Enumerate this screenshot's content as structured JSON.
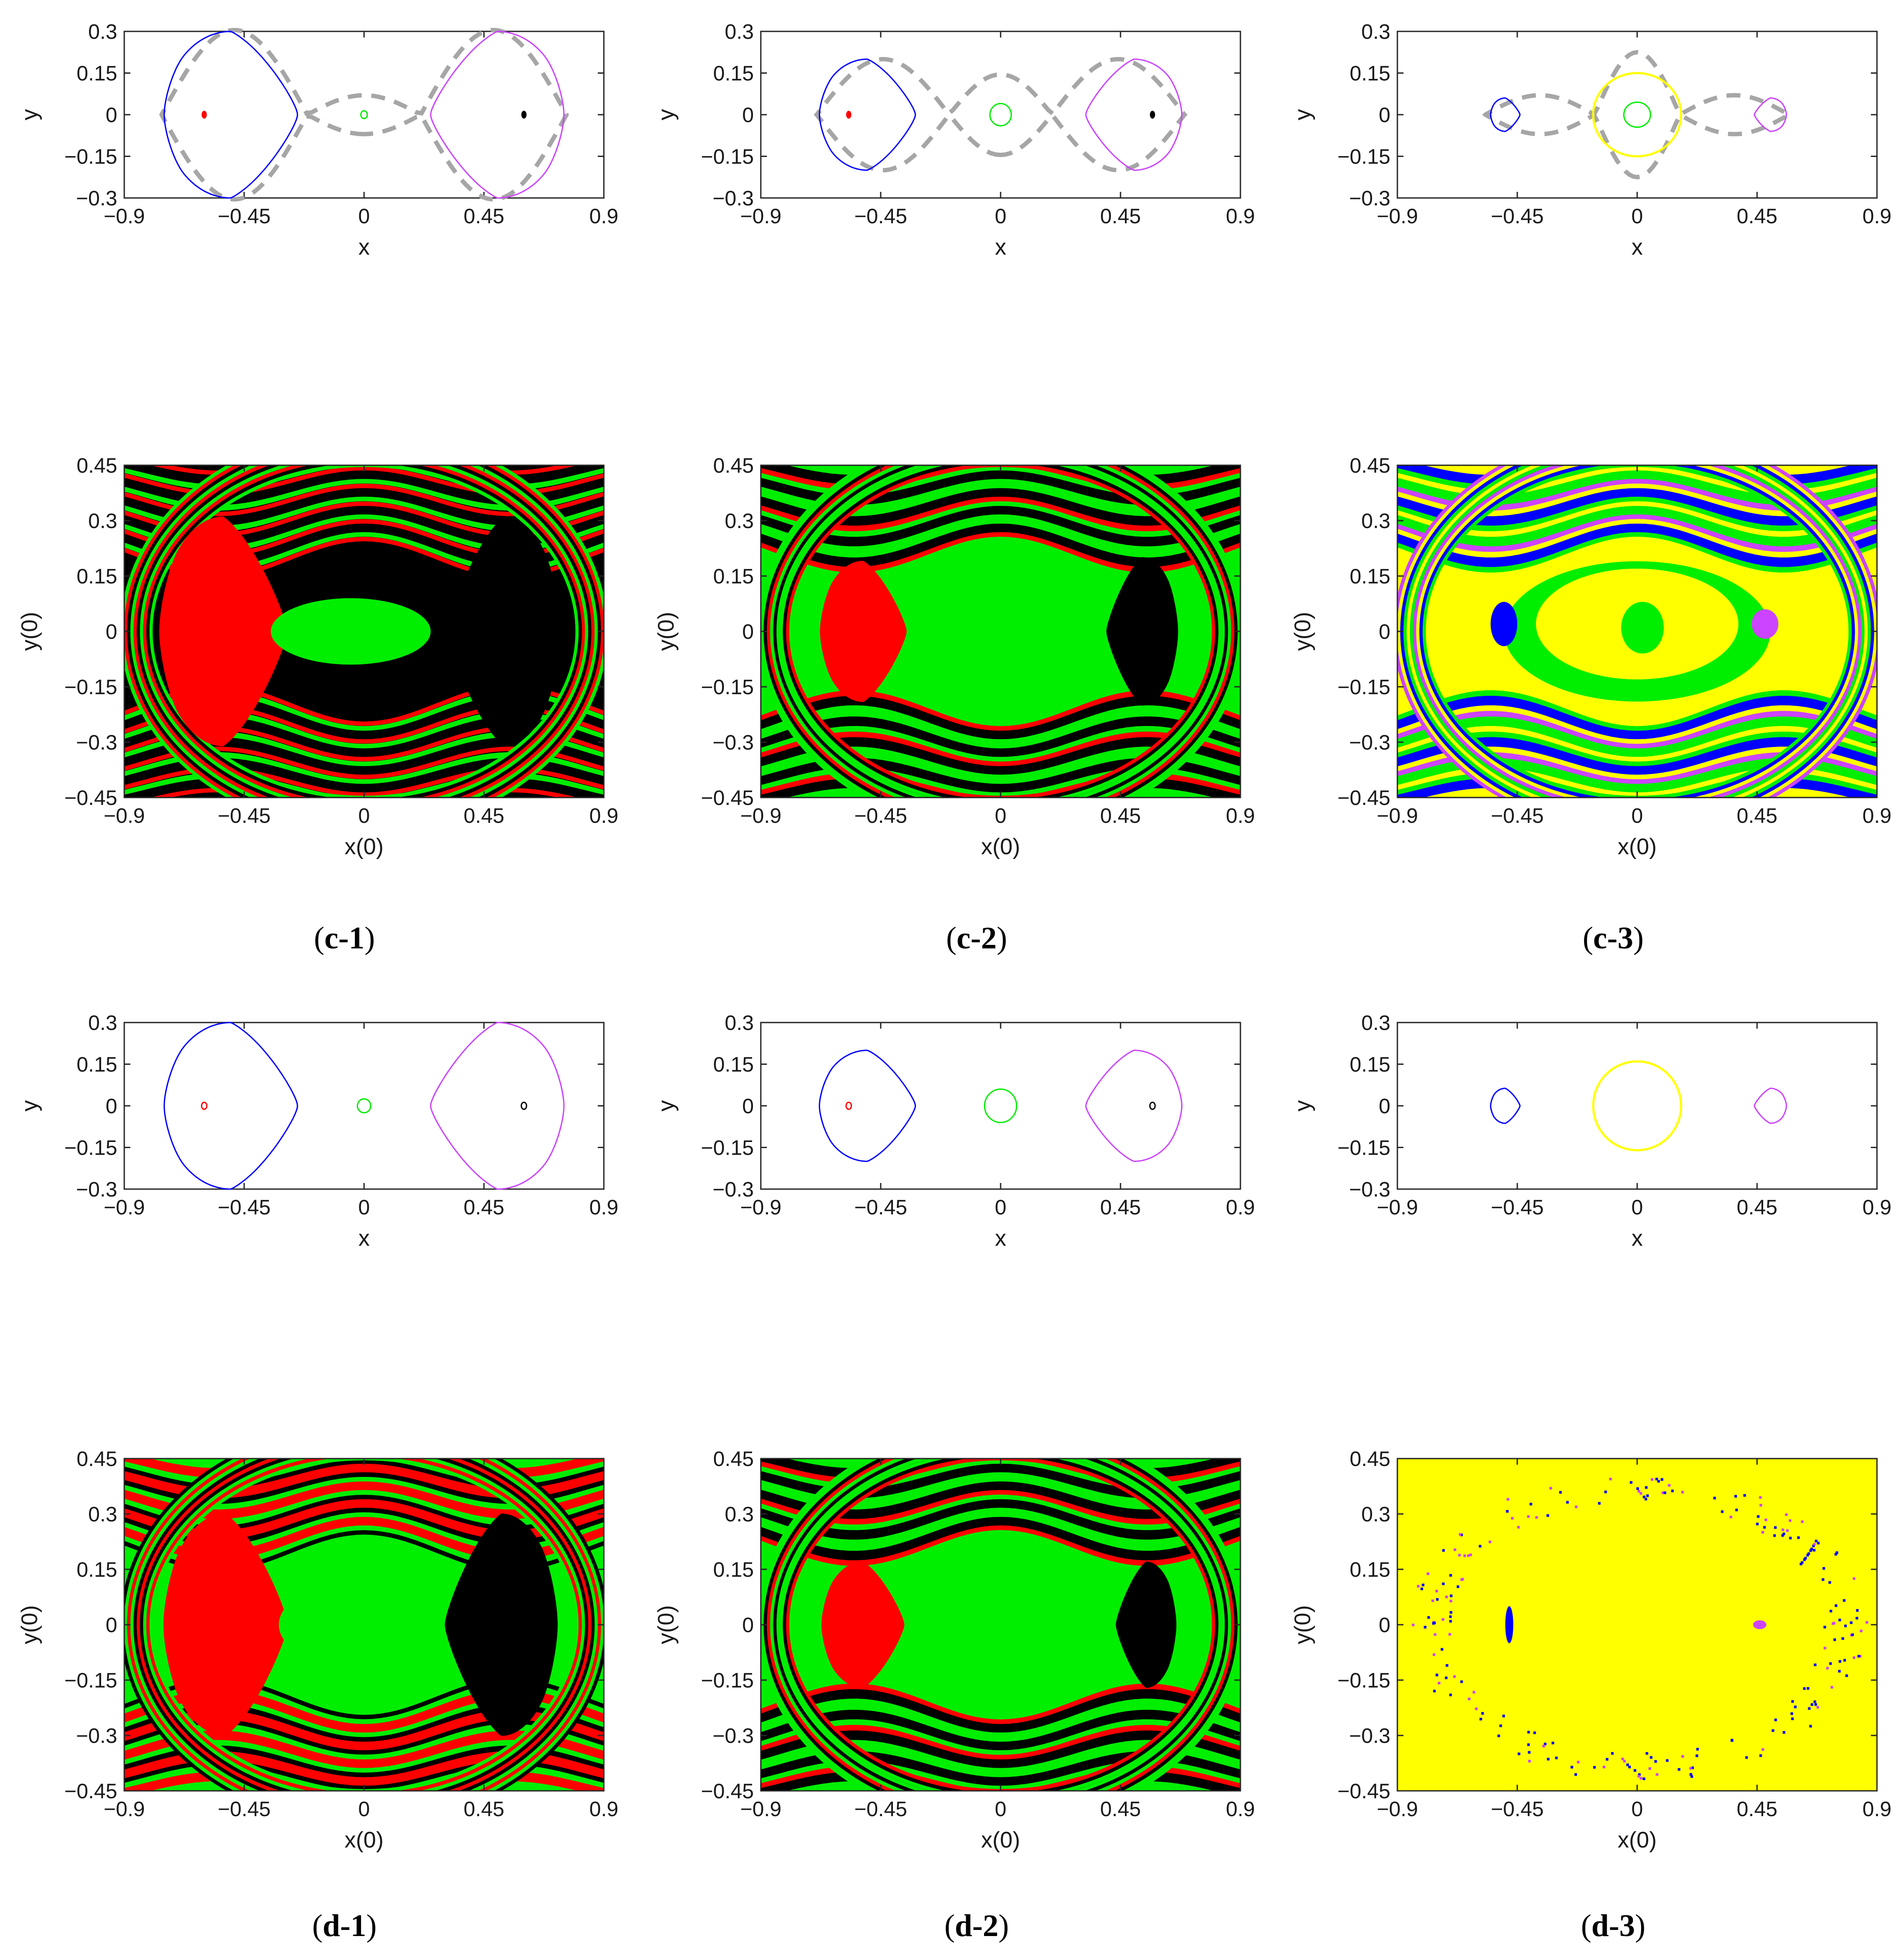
{
  "colors": {
    "blue": "#0000ff",
    "magenta": "#cc44ff",
    "green": "#00ee00",
    "red": "#ff0000",
    "black": "#000000",
    "yellow": "#ffff00",
    "gray_dashed": "#a6a6a6",
    "axis": "#262626"
  },
  "captions": [
    {
      "open": "(",
      "label": "c-1",
      "close": ")"
    },
    {
      "open": "(",
      "label": "c-2",
      "close": ")"
    },
    {
      "open": "(",
      "label": "c-3",
      "close": ")"
    },
    {
      "open": "(",
      "label": "d-1",
      "close": ")"
    },
    {
      "open": "(",
      "label": "d-2",
      "close": ")"
    },
    {
      "open": "(",
      "label": "d-3",
      "close": ")"
    }
  ],
  "chart_data": [
    {
      "id": "c1-phase",
      "type": "line",
      "xlabel": "x",
      "ylabel": "y",
      "xlim": [
        -0.9,
        0.9
      ],
      "ylim": [
        -0.3,
        0.3
      ],
      "xticks": [
        "−0.9",
        "−0.45",
        "0",
        "0.45",
        "0.9"
      ],
      "yticks": [
        "−0.3",
        "−0.15",
        "0",
        "0.15",
        "0.3"
      ],
      "curves": [
        {
          "kind": "lobe",
          "color": "blue",
          "cx": -0.6,
          "xmin": -0.75,
          "xmax": -0.25,
          "ymax": 0.3,
          "side": "left"
        },
        {
          "kind": "lobe",
          "color": "magenta",
          "cx": 0.6,
          "xmin": 0.25,
          "xmax": 0.75,
          "ymax": 0.3,
          "side": "right"
        },
        {
          "kind": "ellipse",
          "color": "green",
          "cx": 0.0,
          "cy": 0,
          "rx": 0.012,
          "ry": 0.014
        },
        {
          "kind": "dot",
          "color": "red",
          "cx": -0.6,
          "cy": 0
        },
        {
          "kind": "dot",
          "color": "black",
          "cx": 0.6,
          "cy": 0
        },
        {
          "kind": "separatrix",
          "color": "gray_dashed",
          "xouter": 0.76,
          "saddle": 0.6,
          "ylobe": 0.305,
          "ymid": 0.07
        }
      ]
    },
    {
      "id": "c2-phase",
      "type": "line",
      "xlabel": "x",
      "ylabel": "y",
      "xlim": [
        -0.9,
        0.9
      ],
      "ylim": [
        -0.3,
        0.3
      ],
      "xticks": [
        "−0.9",
        "−0.45",
        "0",
        "0.45",
        "0.9"
      ],
      "yticks": [
        "−0.3",
        "−0.15",
        "0",
        "0.15",
        "0.3"
      ],
      "curves": [
        {
          "kind": "lobe",
          "color": "blue",
          "cx": -0.55,
          "xmin": -0.68,
          "xmax": -0.32,
          "ymax": 0.2,
          "side": "left"
        },
        {
          "kind": "lobe",
          "color": "magenta",
          "cx": 0.55,
          "xmin": 0.32,
          "xmax": 0.68,
          "ymax": 0.2,
          "side": "right"
        },
        {
          "kind": "ellipse",
          "color": "green",
          "cx": 0.0,
          "cy": 0,
          "rx": 0.04,
          "ry": 0.04
        },
        {
          "kind": "dot",
          "color": "red",
          "cx": -0.57,
          "cy": 0
        },
        {
          "kind": "dot",
          "color": "black",
          "cx": 0.57,
          "cy": 0
        },
        {
          "kind": "separatrix",
          "color": "gray_dashed",
          "xouter": 0.69,
          "saddle": 0.55,
          "ylobe": 0.2,
          "ymid": 0.145
        }
      ]
    },
    {
      "id": "c3-phase",
      "type": "line",
      "xlabel": "x",
      "ylabel": "y",
      "xlim": [
        -0.9,
        0.9
      ],
      "ylim": [
        -0.3,
        0.3
      ],
      "xticks": [
        "−0.9",
        "−0.45",
        "0",
        "0.45",
        "0.9"
      ],
      "yticks": [
        "−0.3",
        "−0.15",
        "0",
        "0.15",
        "0.3"
      ],
      "curves": [
        {
          "kind": "lobe",
          "color": "blue",
          "cx": -0.5,
          "xmin": -0.55,
          "xmax": -0.44,
          "ymax": 0.06,
          "side": "left"
        },
        {
          "kind": "lobe",
          "color": "magenta",
          "cx": 0.5,
          "xmin": 0.44,
          "xmax": 0.56,
          "ymax": 0.06,
          "side": "right"
        },
        {
          "kind": "ellipse",
          "color": "yellow",
          "cx": 0.0,
          "cy": 0,
          "rx": 0.165,
          "ry": 0.15
        },
        {
          "kind": "ellipse",
          "color": "green",
          "cx": 0.0,
          "cy": 0,
          "rx": 0.05,
          "ry": 0.045
        },
        {
          "kind": "separatrix",
          "color": "gray_dashed",
          "xouter": 0.57,
          "saddle": 0.5,
          "ylobe": 0.07,
          "ymid": 0.225
        }
      ]
    },
    {
      "id": "d1-phase",
      "type": "line",
      "xlabel": "x",
      "ylabel": "y",
      "xlim": [
        -0.9,
        0.9
      ],
      "ylim": [
        -0.3,
        0.3
      ],
      "xticks": [
        "−0.9",
        "−0.45",
        "0",
        "0.45",
        "0.9"
      ],
      "yticks": [
        "−0.3",
        "−0.15",
        "0",
        "0.15",
        "0.3"
      ],
      "curves": [
        {
          "kind": "lobe",
          "color": "blue",
          "cx": -0.6,
          "xmin": -0.75,
          "xmax": -0.25,
          "ymax": 0.3,
          "side": "left"
        },
        {
          "kind": "lobe",
          "color": "magenta",
          "cx": 0.6,
          "xmin": 0.25,
          "xmax": 0.75,
          "ymax": 0.3,
          "side": "right"
        },
        {
          "kind": "ellipse",
          "color": "green",
          "cx": 0.0,
          "cy": 0,
          "rx": 0.025,
          "ry": 0.025
        },
        {
          "kind": "ellipse",
          "color": "red",
          "cx": -0.6,
          "cy": 0,
          "rx": 0.006,
          "ry": 0.006
        },
        {
          "kind": "ellipse",
          "color": "black",
          "cx": 0.6,
          "cy": 0,
          "rx": 0.006,
          "ry": 0.006
        }
      ]
    },
    {
      "id": "d2-phase",
      "type": "line",
      "xlabel": "x",
      "ylabel": "y",
      "xlim": [
        -0.9,
        0.9
      ],
      "ylim": [
        -0.3,
        0.3
      ],
      "xticks": [
        "−0.9",
        "−0.45",
        "0",
        "0.45",
        "0.9"
      ],
      "yticks": [
        "−0.3",
        "−0.15",
        "0",
        "0.15",
        "0.3"
      ],
      "curves": [
        {
          "kind": "lobe",
          "color": "blue",
          "cx": -0.55,
          "xmin": -0.68,
          "xmax": -0.32,
          "ymax": 0.2,
          "side": "left"
        },
        {
          "kind": "lobe",
          "color": "magenta",
          "cx": 0.55,
          "xmin": 0.32,
          "xmax": 0.68,
          "ymax": 0.2,
          "side": "right"
        },
        {
          "kind": "ellipse",
          "color": "green",
          "cx": 0.0,
          "cy": 0,
          "rx": 0.06,
          "ry": 0.06
        },
        {
          "kind": "ellipse",
          "color": "red",
          "cx": -0.57,
          "cy": 0,
          "rx": 0.008,
          "ry": 0.008
        },
        {
          "kind": "ellipse",
          "color": "black",
          "cx": 0.57,
          "cy": 0,
          "rx": 0.008,
          "ry": 0.008
        }
      ]
    },
    {
      "id": "d3-phase",
      "type": "line",
      "xlabel": "x",
      "ylabel": "y",
      "xlim": [
        -0.9,
        0.9
      ],
      "ylim": [
        -0.3,
        0.3
      ],
      "xticks": [
        "−0.9",
        "−0.45",
        "0",
        "0.45",
        "0.9"
      ],
      "yticks": [
        "−0.3",
        "−0.15",
        "0",
        "0.15",
        "0.3"
      ],
      "curves": [
        {
          "kind": "lobe",
          "color": "blue",
          "cx": -0.5,
          "xmin": -0.55,
          "xmax": -0.44,
          "ymax": 0.063,
          "side": "left"
        },
        {
          "kind": "lobe",
          "color": "magenta",
          "cx": 0.5,
          "xmin": 0.44,
          "xmax": 0.56,
          "ymax": 0.063,
          "side": "right"
        },
        {
          "kind": "ellipse",
          "color": "yellow",
          "cx": 0.0,
          "cy": 0,
          "rx": 0.165,
          "ry": 0.16
        }
      ]
    },
    {
      "id": "c1-basin",
      "type": "heatmap",
      "xlabel": "x(0)",
      "ylabel": "y(0)",
      "xlim": [
        -0.9,
        0.9
      ],
      "ylim": [
        -0.45,
        0.45
      ],
      "xticks": [
        "−0.9",
        "−0.45",
        "0",
        "0.45",
        "0.9"
      ],
      "yticks": [
        "−0.45",
        "−0.3",
        "−0.15",
        "0",
        "0.15",
        "0.3",
        "0.45"
      ],
      "background": "black",
      "stripe_colors": [
        "red",
        "green",
        "black",
        "red",
        "green",
        "black"
      ],
      "regions": [
        {
          "color": "red",
          "cx": -0.58,
          "cy": 0,
          "rx": 0.34,
          "ry": 0.31
        },
        {
          "color": "green",
          "cx": -0.05,
          "cy": 0.0,
          "rx": 0.3,
          "ry": 0.09
        },
        {
          "color": "black",
          "cx": 0.57,
          "cy": 0.0,
          "rx": 0.3,
          "ry": 0.31
        }
      ]
    },
    {
      "id": "c2-basin",
      "type": "heatmap",
      "xlabel": "x(0)",
      "ylabel": "y(0)",
      "xlim": [
        -0.9,
        0.9
      ],
      "ylim": [
        -0.45,
        0.45
      ],
      "xticks": [
        "−0.9",
        "−0.45",
        "0",
        "0.45",
        "0.9"
      ],
      "yticks": [
        "−0.45",
        "−0.3",
        "−0.15",
        "0",
        "0.15",
        "0.3",
        "0.45"
      ],
      "background": "green",
      "stripe_colors": [
        "green",
        "red",
        "black",
        "green",
        "green",
        "black"
      ],
      "regions": [
        {
          "color": "red",
          "cx": -0.55,
          "cy": 0,
          "rx": 0.23,
          "ry": 0.19
        },
        {
          "color": "green",
          "cx": 0.0,
          "cy": 0.0,
          "rx": 0.3,
          "ry": 0.15
        },
        {
          "color": "black",
          "cx": 0.56,
          "cy": 0.0,
          "rx": 0.19,
          "ry": 0.2
        }
      ]
    },
    {
      "id": "c3-basin",
      "type": "heatmap",
      "xlabel": "x(0)",
      "ylabel": "y(0)",
      "xlim": [
        -0.9,
        0.9
      ],
      "ylim": [
        -0.45,
        0.45
      ],
      "xticks": [
        "−0.9",
        "−0.45",
        "0",
        "0.45",
        "0.9"
      ],
      "yticks": [
        "−0.45",
        "−0.3",
        "−0.15",
        "0",
        "0.15",
        "0.3",
        "0.45"
      ],
      "background": "yellow",
      "stripe_colors": [
        "yellow",
        "green",
        "blue",
        "yellow",
        "magenta",
        "green"
      ],
      "regions": [
        {
          "color": "green",
          "cx": 0.0,
          "cy": 0.0,
          "rx": 0.5,
          "ry": 0.19
        },
        {
          "color": "yellow",
          "cx": 0.0,
          "cy": 0.02,
          "rx": 0.38,
          "ry": 0.15
        },
        {
          "color": "green",
          "cx": 0.02,
          "cy": 0.01,
          "rx": 0.08,
          "ry": 0.07
        },
        {
          "color": "blue",
          "cx": -0.5,
          "cy": 0.02,
          "rx": 0.05,
          "ry": 0.06
        },
        {
          "color": "magenta",
          "cx": 0.48,
          "cy": 0.02,
          "rx": 0.05,
          "ry": 0.04
        }
      ]
    },
    {
      "id": "d1-basin",
      "type": "heatmap",
      "xlabel": "x(0)",
      "ylabel": "y(0)",
      "xlim": [
        -0.9,
        0.9
      ],
      "ylim": [
        -0.45,
        0.45
      ],
      "xticks": [
        "−0.9",
        "−0.45",
        "0",
        "0.45",
        "0.9"
      ],
      "yticks": [
        "−0.45",
        "−0.3",
        "−0.15",
        "0",
        "0.15",
        "0.3",
        "0.45"
      ],
      "background": "green",
      "stripe_colors": [
        "black",
        "green",
        "red",
        "green",
        "black",
        "red"
      ],
      "regions": [
        {
          "color": "red",
          "cx": -0.57,
          "cy": 0,
          "rx": 0.33,
          "ry": 0.3
        },
        {
          "color": "green",
          "cx": 0.0,
          "cy": 0.0,
          "rx": 0.32,
          "ry": 0.12
        },
        {
          "color": "black",
          "cx": 0.56,
          "cy": 0.0,
          "rx": 0.3,
          "ry": 0.3
        }
      ]
    },
    {
      "id": "d2-basin",
      "type": "heatmap",
      "xlabel": "x(0)",
      "ylabel": "y(0)",
      "xlim": [
        -0.9,
        0.9
      ],
      "ylim": [
        -0.45,
        0.45
      ],
      "xticks": [
        "−0.9",
        "−0.45",
        "0",
        "0.45",
        "0.9"
      ],
      "yticks": [
        "−0.45",
        "−0.3",
        "−0.15",
        "0",
        "0.15",
        "0.3",
        "0.45"
      ],
      "background": "green",
      "stripe_colors": [
        "green",
        "red",
        "black",
        "green",
        "green",
        "black"
      ],
      "regions": [
        {
          "color": "red",
          "cx": -0.55,
          "cy": 0,
          "rx": 0.22,
          "ry": 0.17
        },
        {
          "color": "green",
          "cx": 0.0,
          "cy": 0.0,
          "rx": 0.33,
          "ry": 0.17
        },
        {
          "color": "black",
          "cx": 0.57,
          "cy": 0.0,
          "rx": 0.16,
          "ry": 0.17
        }
      ]
    },
    {
      "id": "d3-basin",
      "type": "heatmap",
      "xlabel": "x(0)",
      "ylabel": "y(0)",
      "xlim": [
        -0.9,
        0.9
      ],
      "ylim": [
        -0.45,
        0.45
      ],
      "xticks": [
        "−0.9",
        "−0.45",
        "0",
        "0.45",
        "0.9"
      ],
      "yticks": [
        "−0.45",
        "−0.3",
        "−0.15",
        "0",
        "0.15",
        "0.3",
        "0.45"
      ],
      "background": "yellow",
      "stripe_colors": [],
      "regions": [
        {
          "color": "blue",
          "cx": -0.48,
          "cy": 0.0,
          "rx": 0.015,
          "ry": 0.05
        },
        {
          "color": "magenta",
          "cx": 0.46,
          "cy": 0.0,
          "rx": 0.025,
          "ry": 0.012
        }
      ]
    }
  ]
}
